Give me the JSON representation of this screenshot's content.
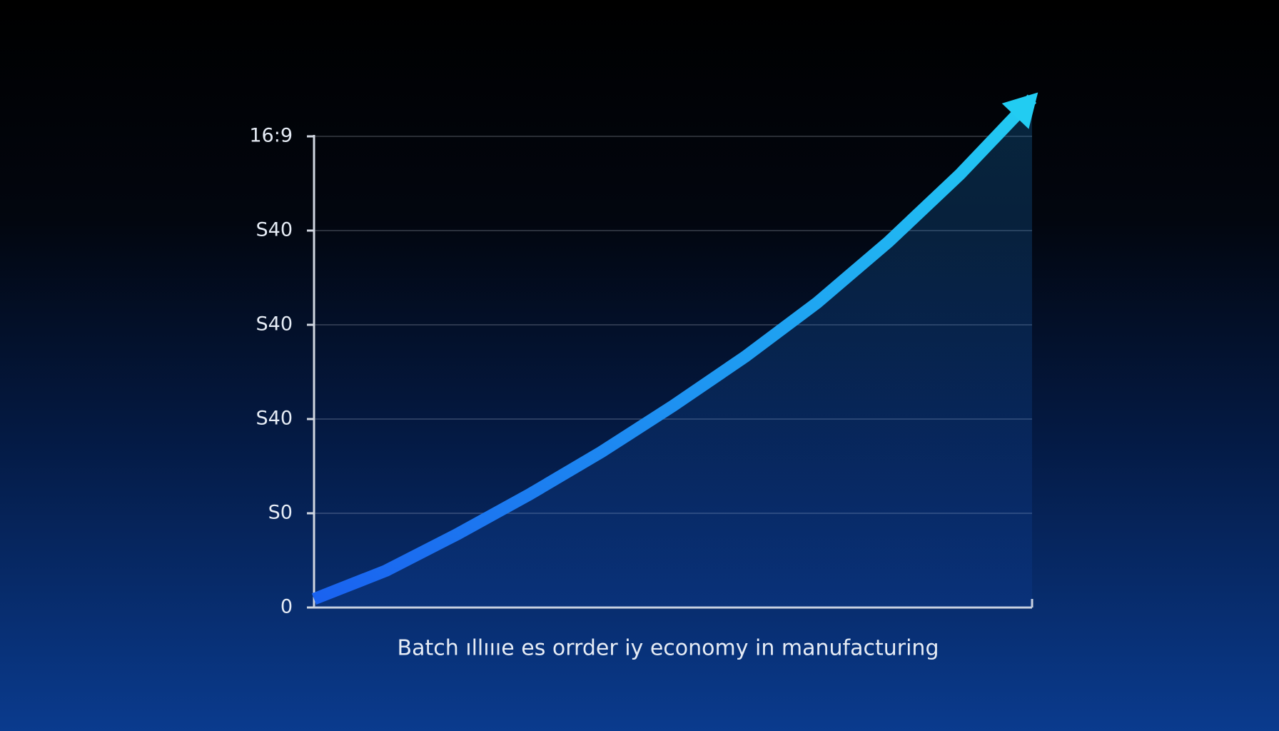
{
  "chart_data": {
    "type": "line",
    "x_label": "Batch ıllıııe es orrder iy economy in manufacturing",
    "x": [
      0,
      1,
      2,
      3,
      4,
      5,
      6,
      7,
      8,
      9,
      10
    ],
    "xlim": [
      0,
      10
    ],
    "series": [
      {
        "color": "#1a62f0",
        "values": [
          0.09,
          0.39,
          0.78,
          1.2,
          1.65,
          2.14,
          2.66,
          3.23,
          3.88,
          4.6,
          5.4
        ]
      }
    ],
    "ylim": [
      0,
      5
    ],
    "yticks": [
      0,
      {
        "value": 1,
        "label": "S0"
      },
      {
        "value": 2,
        "label": "S40"
      },
      {
        "value": 3,
        "label": "S40"
      },
      {
        "value": 4,
        "label": "S40"
      },
      {
        "value": 5,
        "label": "16:9"
      }
    ],
    "grid": true
  }
}
